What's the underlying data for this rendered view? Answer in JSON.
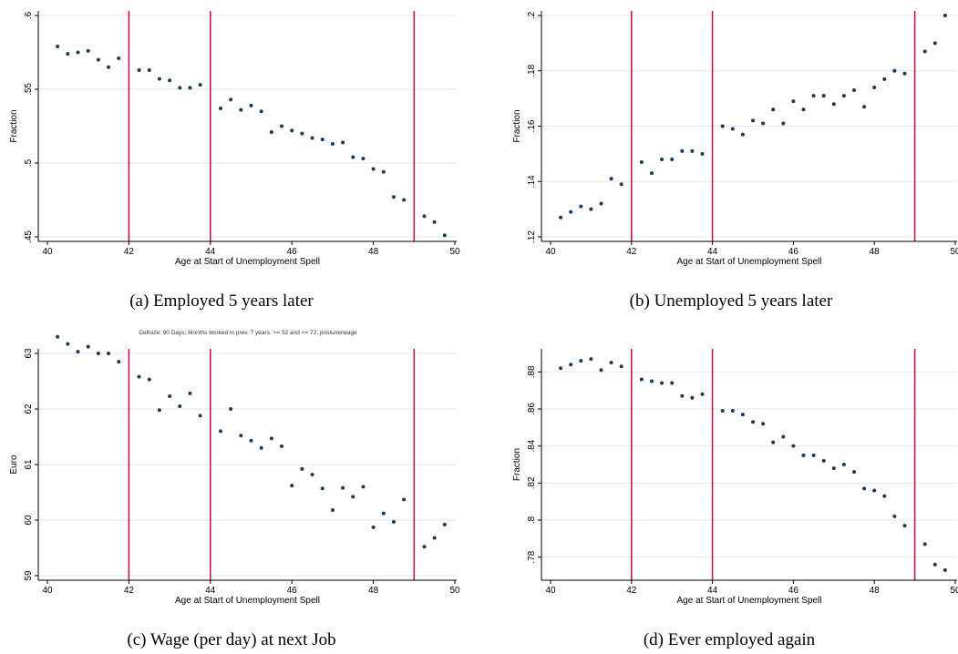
{
  "colors": {
    "points": "#1a3a5c",
    "vline": "#c2185b",
    "grid": "#e6e6e6",
    "axis": "#000000"
  },
  "chart_data": [
    {
      "type": "scatter",
      "caption": "(a) Employed 5 years later",
      "xlabel": "Age at Start of Unemployment Spell",
      "ylabel": "Fraction",
      "xlim": [
        40,
        50
      ],
      "ylim": [
        0.45,
        0.6
      ],
      "xticks": [
        40,
        42,
        44,
        46,
        48,
        50
      ],
      "yticks": [
        0.45,
        0.5,
        0.55,
        0.6
      ],
      "yticklabels": [
        ".45",
        ".5",
        ".55",
        ".6"
      ],
      "vlines": [
        42,
        44,
        49
      ],
      "grid": true,
      "x": [
        40.25,
        40.5,
        40.75,
        41.0,
        41.25,
        41.5,
        41.75,
        42.25,
        42.5,
        42.75,
        43.0,
        43.25,
        43.5,
        43.75,
        44.25,
        44.5,
        44.75,
        45.0,
        45.25,
        45.5,
        45.75,
        46.0,
        46.25,
        46.5,
        46.75,
        47.0,
        47.25,
        47.5,
        47.75,
        48.0,
        48.25,
        48.5,
        48.75,
        49.25,
        49.5,
        49.75
      ],
      "y": [
        0.579,
        0.574,
        0.575,
        0.576,
        0.57,
        0.565,
        0.571,
        0.563,
        0.563,
        0.557,
        0.556,
        0.551,
        0.551,
        0.553,
        0.537,
        0.543,
        0.536,
        0.539,
        0.535,
        0.521,
        0.525,
        0.522,
        0.52,
        0.517,
        0.516,
        0.513,
        0.514,
        0.504,
        0.503,
        0.496,
        0.494,
        0.477,
        0.475,
        0.464,
        0.46,
        0.451
      ]
    },
    {
      "type": "scatter",
      "caption": "(b) Unemployed 5 years later",
      "xlabel": "Age at Start of Unemployment Spell",
      "ylabel": "Fraction",
      "xlim": [
        40,
        50
      ],
      "ylim": [
        0.12,
        0.2
      ],
      "xticks": [
        40,
        42,
        44,
        46,
        48,
        50
      ],
      "yticks": [
        0.12,
        0.14,
        0.16,
        0.18,
        0.2
      ],
      "yticklabels": [
        ".12",
        ".14",
        ".16",
        ".18",
        ".2"
      ],
      "vlines": [
        42,
        44,
        49
      ],
      "grid": true,
      "x": [
        40.25,
        40.5,
        40.75,
        41.0,
        41.25,
        41.5,
        41.75,
        42.25,
        42.5,
        42.75,
        43.0,
        43.25,
        43.5,
        43.75,
        44.25,
        44.5,
        44.75,
        45.0,
        45.25,
        45.5,
        45.75,
        46.0,
        46.25,
        46.5,
        46.75,
        47.0,
        47.25,
        47.5,
        47.75,
        48.0,
        48.25,
        48.5,
        48.75,
        49.25,
        49.5,
        49.75
      ],
      "y": [
        0.127,
        0.129,
        0.131,
        0.13,
        0.132,
        0.141,
        0.139,
        0.147,
        0.143,
        0.148,
        0.148,
        0.151,
        0.151,
        0.15,
        0.16,
        0.159,
        0.157,
        0.162,
        0.161,
        0.166,
        0.161,
        0.169,
        0.166,
        0.171,
        0.171,
        0.168,
        0.171,
        0.173,
        0.167,
        0.174,
        0.177,
        0.18,
        0.179,
        0.187,
        0.19,
        0.2
      ]
    },
    {
      "type": "scatter",
      "caption": "(c) Wage (per day) at next Job",
      "note": "Cellsize: 90 Days; Months worked in prev. 7 years: >= 52 and <= 72; postunerwage",
      "xlabel": "Age at Start of Unemployment Spell",
      "ylabel": "Euro",
      "xlim": [
        40,
        50
      ],
      "ylim": [
        59,
        63
      ],
      "xticks": [
        40,
        42,
        44,
        46,
        48,
        50
      ],
      "yticks": [
        59,
        60,
        61,
        62,
        63
      ],
      "yticklabels": [
        "59",
        "60",
        "61",
        "62",
        "63"
      ],
      "vlines": [
        42,
        44,
        49
      ],
      "grid": true,
      "x": [
        40.25,
        40.5,
        40.75,
        41.0,
        41.25,
        41.5,
        41.75,
        42.25,
        42.5,
        42.75,
        43.0,
        43.25,
        43.5,
        43.75,
        44.25,
        44.5,
        44.75,
        45.0,
        45.25,
        45.5,
        45.75,
        46.0,
        46.25,
        46.5,
        46.75,
        47.0,
        47.25,
        47.5,
        47.75,
        48.0,
        48.25,
        48.5,
        48.75,
        49.25,
        49.5,
        49.75
      ],
      "y": [
        63.3,
        63.17,
        63.03,
        63.12,
        63.0,
        63.0,
        62.85,
        62.58,
        62.53,
        61.98,
        62.23,
        62.05,
        62.28,
        61.88,
        61.6,
        62.0,
        61.52,
        61.43,
        61.3,
        61.47,
        61.33,
        60.62,
        60.92,
        60.82,
        60.57,
        60.18,
        60.58,
        60.42,
        60.6,
        59.87,
        60.12,
        59.97,
        60.37,
        59.52,
        59.68,
        59.92
      ]
    },
    {
      "type": "scatter",
      "caption": "(d) Ever employed again",
      "xlabel": "Age at Start of Unemployment Spell",
      "ylabel": "Fraction",
      "xlim": [
        40,
        50
      ],
      "ylim": [
        0.77,
        0.89
      ],
      "xticks": [
        40,
        42,
        44,
        46,
        48,
        50
      ],
      "yticks": [
        0.78,
        0.8,
        0.82,
        0.84,
        0.86,
        0.88
      ],
      "yticklabels": [
        ".78",
        ".8",
        ".82",
        ".84",
        ".86",
        ".88"
      ],
      "vlines": [
        42,
        44,
        49
      ],
      "grid": true,
      "x": [
        40.25,
        40.5,
        40.75,
        41.0,
        41.25,
        41.5,
        41.75,
        42.25,
        42.5,
        42.75,
        43.0,
        43.25,
        43.5,
        43.75,
        44.25,
        44.5,
        44.75,
        45.0,
        45.25,
        45.5,
        45.75,
        46.0,
        46.25,
        46.5,
        46.75,
        47.0,
        47.25,
        47.5,
        47.75,
        48.0,
        48.25,
        48.5,
        48.75,
        49.25,
        49.5,
        49.75
      ],
      "y": [
        0.882,
        0.884,
        0.886,
        0.887,
        0.881,
        0.885,
        0.883,
        0.876,
        0.875,
        0.874,
        0.874,
        0.867,
        0.866,
        0.868,
        0.859,
        0.859,
        0.857,
        0.853,
        0.852,
        0.842,
        0.845,
        0.84,
        0.835,
        0.835,
        0.832,
        0.828,
        0.83,
        0.826,
        0.817,
        0.816,
        0.813,
        0.802,
        0.797,
        0.787,
        0.776,
        0.773
      ]
    }
  ]
}
